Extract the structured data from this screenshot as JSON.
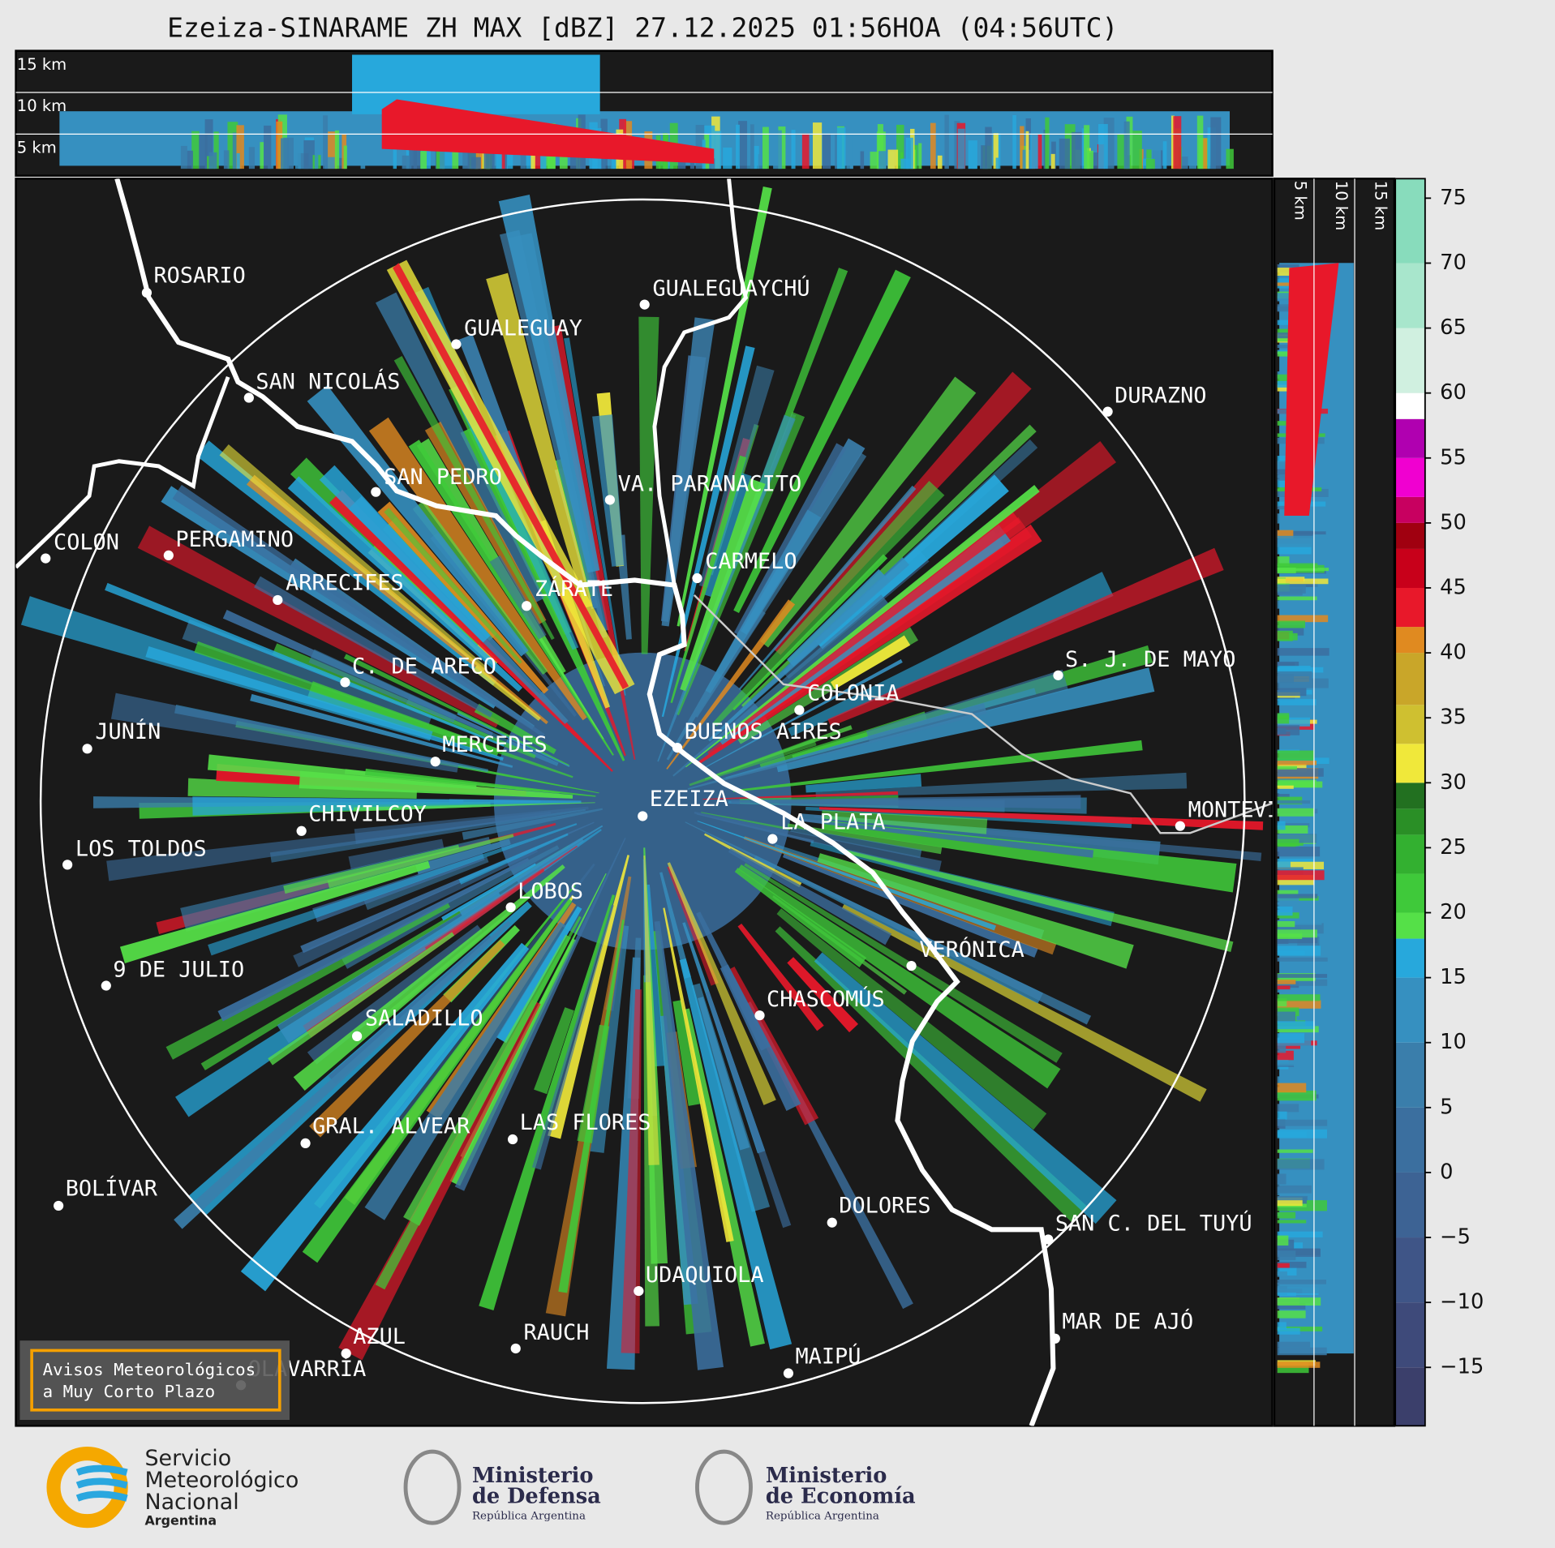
{
  "header": {
    "title": "Ezeiza-SINARAME ZH MAX [dBZ] 27.12.2025 01:56HOA (04:56UTC)"
  },
  "top_panel": {
    "height_labels": [
      "15 km",
      "10 km",
      "5 km"
    ]
  },
  "side_panel": {
    "height_labels": [
      "5 km",
      "10 km",
      "15 km"
    ]
  },
  "cities": [
    "ROSARIO",
    "GUALEGUAYCHÚ",
    "GUALEGUAY",
    "SAN NICOLÁS",
    "DURAZNO",
    "SAN PEDRO",
    "VA. PARANACITO",
    "COLON",
    "PERGAMINO",
    "CARMELO",
    "ARRECIFES",
    "ZÁRATE",
    "S. J. DE MAYO",
    "C. DE ARECO",
    "COLONIA",
    "BUENOS AIRES",
    "JUNÍN",
    "MERCEDES",
    "EZEIZA",
    "MONTEVIDEO",
    "CHIVILCOY",
    "LA PLATA",
    "LOS TOLDOS",
    "LOBOS",
    "VERÓNICA",
    "9 DE JULIO",
    "CHASCOMÚS",
    "SALADILLO",
    "GRAL. ALVEAR",
    "LAS FLORES",
    "DOLORES",
    "BOLÍVAR",
    "SAN C. DEL TUYÚ",
    "UDAQUIOLA",
    "MAR DE AJÓ",
    "AZUL",
    "RAUCH",
    "MAIPÚ",
    "OLAVARRÍA"
  ],
  "colorbar": {
    "range": [
      -19.5,
      76.5
    ],
    "ticks": [
      75,
      70,
      65,
      60,
      55,
      50,
      45,
      40,
      35,
      30,
      25,
      20,
      15,
      10,
      5,
      0,
      {
        "value": -5,
        "label": "−5"
      },
      {
        "value": -10,
        "label": "−10"
      },
      {
        "value": -15,
        "label": "−15"
      }
    ],
    "bands": [
      {
        "from": -19.5,
        "color": "#3b3f6b"
      },
      {
        "from": -15,
        "color": "#3e4a7a"
      },
      {
        "from": -10,
        "color": "#3f5587"
      },
      {
        "from": -5,
        "color": "#3d6394"
      },
      {
        "from": 0,
        "color": "#3b6f9f"
      },
      {
        "from": 5,
        "color": "#3a7eab"
      },
      {
        "from": 10,
        "color": "#3690c0"
      },
      {
        "from": 15,
        "color": "#27a8dc"
      },
      {
        "from": 18,
        "color": "#55e048"
      },
      {
        "from": 20,
        "color": "#3fc93a"
      },
      {
        "from": 23,
        "color": "#33b030"
      },
      {
        "from": 26,
        "color": "#2a8f26"
      },
      {
        "from": 28,
        "color": "#227020"
      },
      {
        "from": 30,
        "color": "#f0e83a"
      },
      {
        "from": 33,
        "color": "#cfc030"
      },
      {
        "from": 36,
        "color": "#c9a629"
      },
      {
        "from": 40,
        "color": "#e08a20"
      },
      {
        "from": 42,
        "color": "#e8182a"
      },
      {
        "from": 45,
        "color": "#c8001a"
      },
      {
        "from": 48,
        "color": "#a00010"
      },
      {
        "from": 50,
        "color": "#c80060"
      },
      {
        "from": 52,
        "color": "#f000d0"
      },
      {
        "from": 55,
        "color": "#b000b0"
      },
      {
        "from": 58,
        "color": "#ffffff"
      },
      {
        "from": 60,
        "color": "#d0f0e0"
      },
      {
        "from": 65,
        "color": "#a8e6cc"
      },
      {
        "from": 70,
        "color": "#88dcbc"
      }
    ]
  },
  "warning_box": {
    "lines": [
      "Avisos Meteorológicos",
      "a Muy Corto Plazo"
    ]
  },
  "footer": {
    "smn": [
      "Servicio",
      "Meteorológico",
      "Nacional",
      "Argentina"
    ],
    "defensa": [
      "Ministerio",
      "de Defensa",
      "República Argentina"
    ],
    "economia": [
      "Ministerio",
      "de Economía",
      "República Argentina"
    ]
  }
}
